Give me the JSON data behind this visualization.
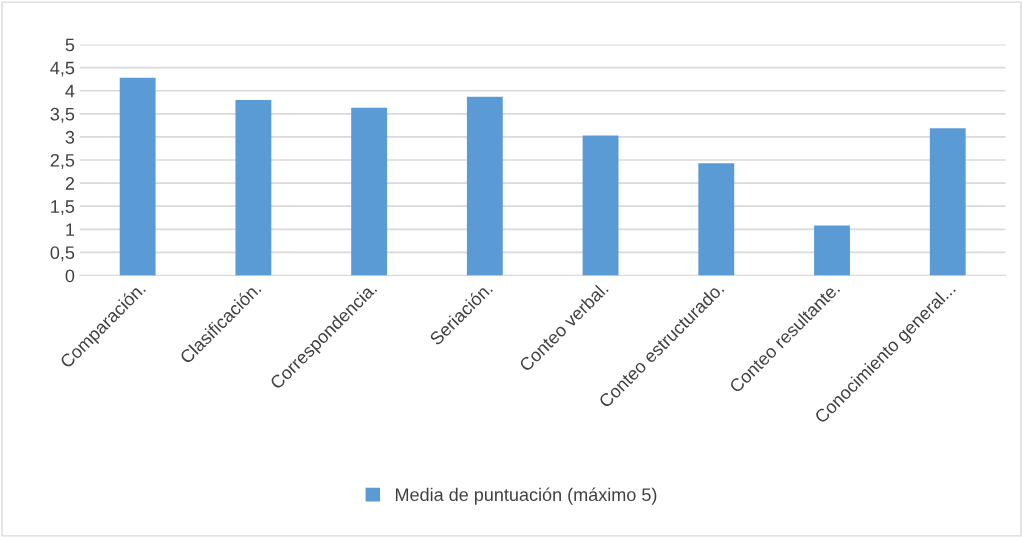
{
  "chart_data": {
    "type": "bar",
    "categories": [
      "Comparación.",
      "Clasificación.",
      "Correspondencia.",
      "Seriación.",
      "Conteo verbal.",
      "Conteo estructurado.",
      "Conteo resultante.",
      "Conocimiento general..."
    ],
    "series": [
      {
        "name": "Media de puntuación (máximo 5)",
        "color": "#5b9bd5",
        "values": [
          4.28,
          3.8,
          3.63,
          3.87,
          3.03,
          2.43,
          1.08,
          3.19
        ]
      }
    ],
    "ylim": [
      0,
      5
    ],
    "yticks": [
      0,
      {
        "value": 0.5,
        "label": "0,5"
      },
      1,
      {
        "value": 1.5,
        "label": "1,5"
      },
      2,
      {
        "value": 2.5,
        "label": "2,5"
      },
      3,
      {
        "value": 3.5,
        "label": "3,5"
      },
      4,
      {
        "value": 4.5,
        "label": "4,5"
      },
      5
    ],
    "grid": "y",
    "legend": "bottom"
  }
}
